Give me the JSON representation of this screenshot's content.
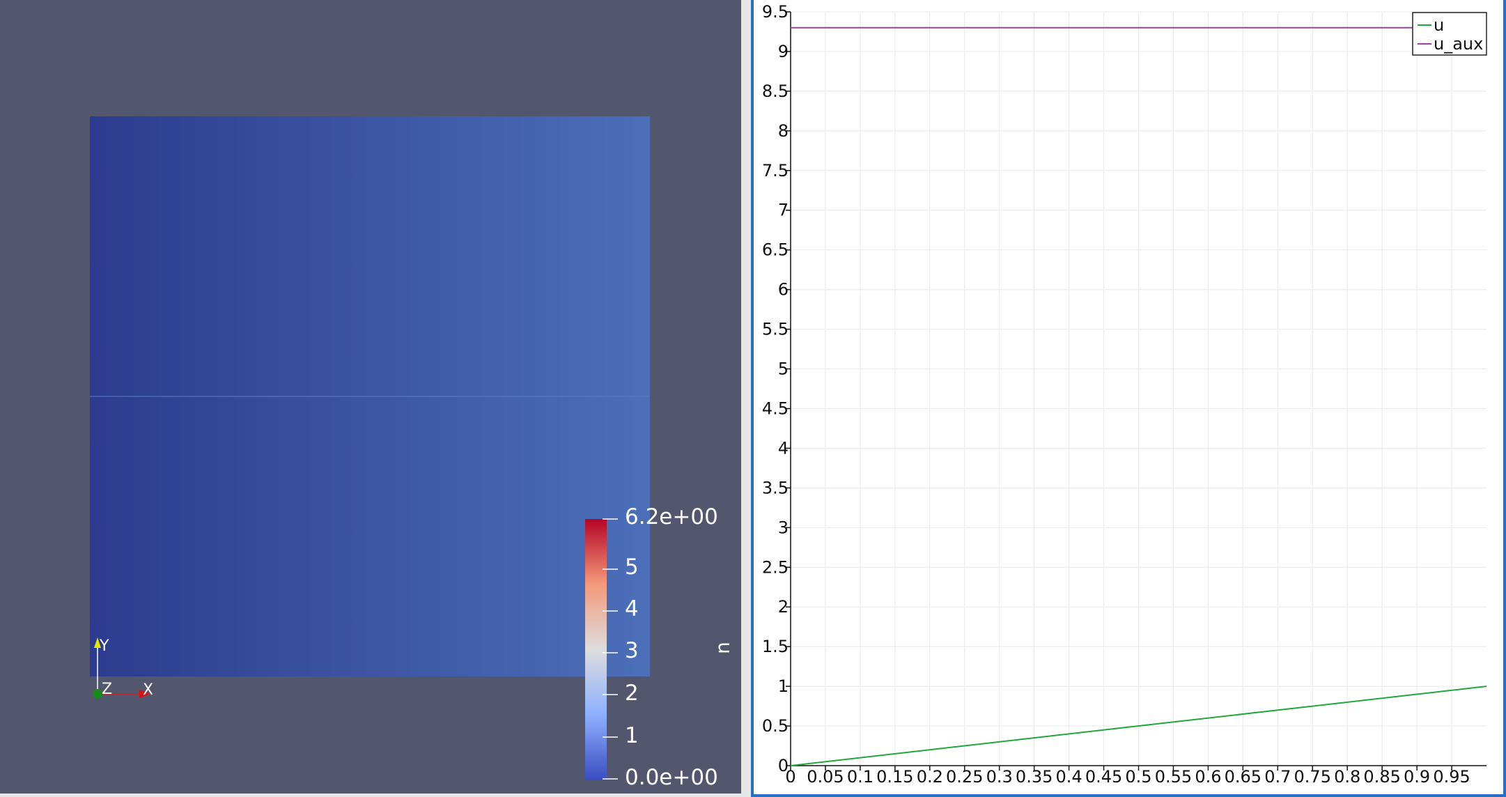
{
  "render_view": {
    "colorbar": {
      "title": "u",
      "max_label": "6.2e+00",
      "min_label": "0.0e+00",
      "tick_labels": [
        "5",
        "4",
        "3",
        "2",
        "1"
      ],
      "colors": [
        "#3b4cc0",
        "#dddddd",
        "#b40426"
      ]
    },
    "orientation_axes": {
      "x": "X",
      "y": "Y",
      "z": "Z"
    },
    "background_color": "#52576e"
  },
  "chart_data": {
    "type": "line",
    "x_range": [
      0,
      1
    ],
    "y_range": [
      0,
      9.5
    ],
    "grid": true,
    "legend_position": "top-right",
    "x_ticks": [
      "0",
      "0.05",
      "0.1",
      "0.15",
      "0.2",
      "0.25",
      "0.3",
      "0.35",
      "0.4",
      "0.45",
      "0.5",
      "0.55",
      "0.6",
      "0.65",
      "0.7",
      "0.75",
      "0.8",
      "0.85",
      "0.9",
      "0.95"
    ],
    "y_ticks": [
      "0",
      "0.5",
      "1",
      "1.5",
      "2",
      "2.5",
      "3",
      "3.5",
      "4",
      "4.5",
      "5",
      "5.5",
      "6",
      "6.5",
      "7",
      "7.5",
      "8",
      "8.5",
      "9",
      "9.5"
    ],
    "series": [
      {
        "name": "u",
        "color": "#1fa83c",
        "x": [
          0,
          0.25,
          0.5,
          0.75,
          1
        ],
        "y": [
          0,
          0.25,
          0.5,
          0.75,
          1
        ]
      },
      {
        "name": "u_aux",
        "color": "#a040a0",
        "x": [
          0,
          0.25,
          0.5,
          0.75,
          1
        ],
        "y": [
          9.3,
          9.3,
          9.3,
          9.3,
          9.3
        ]
      }
    ]
  }
}
